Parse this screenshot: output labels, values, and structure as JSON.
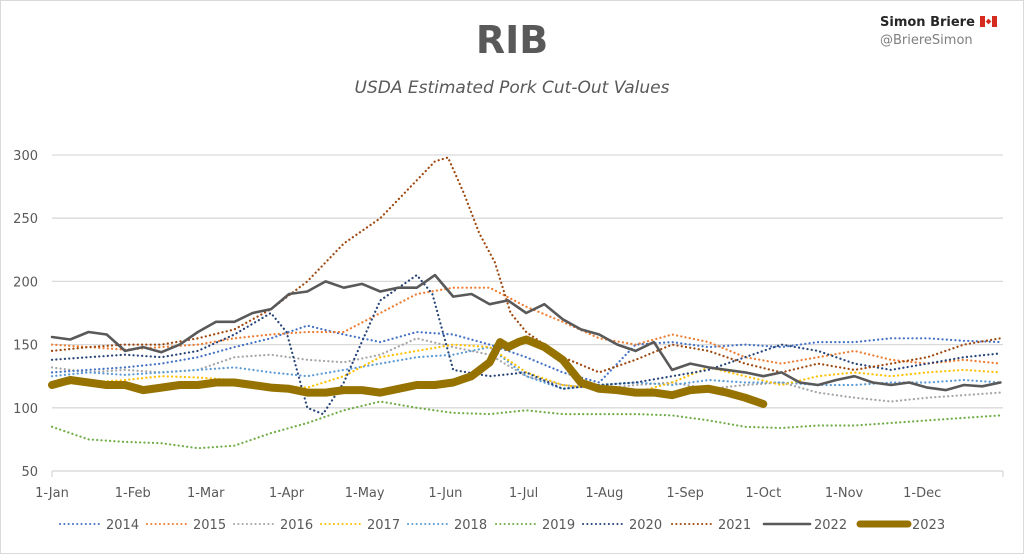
{
  "header": {
    "title": "RIB",
    "subtitle": "USDA Estimated Pork Cut-Out Values",
    "author": "Simon Briere",
    "author_flag_icon": "canada-flag-icon",
    "handle": "@BriereSimon"
  },
  "chart_data": {
    "type": "line",
    "title": "RIB",
    "subtitle": "USDA Estimated Pork Cut-Out Values",
    "xlabel": "",
    "ylabel": "",
    "ylim": [
      50,
      300
    ],
    "yticks": [
      50,
      100,
      150,
      200,
      250,
      300
    ],
    "xlim_day_of_year": [
      0,
      365
    ],
    "xticks": [
      {
        "label": "1-Jan",
        "day": 0
      },
      {
        "label": "1-Feb",
        "day": 31
      },
      {
        "label": "1-Mar",
        "day": 59
      },
      {
        "label": "1-Apr",
        "day": 90
      },
      {
        "label": "1-May",
        "day": 120
      },
      {
        "label": "1-Jun",
        "day": 151
      },
      {
        "label": "1-Jul",
        "day": 181
      },
      {
        "label": "1-Aug",
        "day": 212
      },
      {
        "label": "1-Sep",
        "day": 243
      },
      {
        "label": "1-Oct",
        "day": 273
      },
      {
        "label": "1-Nov",
        "day": 304
      },
      {
        "label": "1-Dec",
        "day": 334
      }
    ],
    "grid": true,
    "legend_position": "bottom",
    "series": [
      {
        "name": "2014",
        "color": "#4472c4",
        "style": "dotted",
        "x": [
          0,
          14,
          28,
          42,
          56,
          70,
          84,
          98,
          112,
          126,
          140,
          154,
          168,
          182,
          196,
          210,
          224,
          238,
          252,
          266,
          280,
          294,
          308,
          322,
          336,
          350,
          364
        ],
        "values": [
          128,
          130,
          132,
          135,
          140,
          148,
          155,
          165,
          158,
          152,
          160,
          158,
          150,
          140,
          128,
          120,
          150,
          152,
          148,
          150,
          148,
          152,
          152,
          155,
          155,
          153,
          152
        ]
      },
      {
        "name": "2015",
        "color": "#ed7d31",
        "style": "dotted",
        "x": [
          0,
          14,
          28,
          42,
          56,
          70,
          84,
          98,
          112,
          126,
          140,
          154,
          168,
          182,
          196,
          210,
          224,
          238,
          252,
          266,
          280,
          294,
          308,
          322,
          336,
          350,
          364
        ],
        "values": [
          150,
          148,
          146,
          148,
          150,
          155,
          158,
          160,
          160,
          175,
          190,
          195,
          195,
          180,
          168,
          155,
          150,
          158,
          152,
          140,
          135,
          140,
          145,
          138,
          135,
          138,
          135
        ]
      },
      {
        "name": "2016",
        "color": "#a5a5a5",
        "style": "dotted",
        "x": [
          0,
          14,
          28,
          42,
          56,
          70,
          84,
          98,
          112,
          126,
          140,
          154,
          168,
          182,
          196,
          210,
          224,
          238,
          252,
          266,
          280,
          294,
          308,
          322,
          336,
          350,
          364
        ],
        "values": [
          132,
          128,
          130,
          128,
          130,
          140,
          142,
          138,
          136,
          142,
          155,
          148,
          142,
          125,
          118,
          115,
          118,
          120,
          115,
          118,
          120,
          112,
          108,
          105,
          108,
          110,
          112
        ]
      },
      {
        "name": "2017",
        "color": "#ffc000",
        "style": "dotted",
        "x": [
          0,
          14,
          28,
          42,
          56,
          70,
          84,
          98,
          112,
          126,
          140,
          154,
          168,
          182,
          196,
          210,
          224,
          238,
          252,
          266,
          280,
          294,
          308,
          322,
          336,
          350,
          364
        ],
        "values": [
          118,
          120,
          122,
          125,
          124,
          122,
          118,
          116,
          125,
          140,
          145,
          150,
          148,
          128,
          118,
          115,
          112,
          120,
          132,
          125,
          118,
          125,
          128,
          125,
          128,
          130,
          128
        ]
      },
      {
        "name": "2018",
        "color": "#5b9bd5",
        "style": "dotted",
        "x": [
          0,
          14,
          28,
          42,
          56,
          70,
          84,
          98,
          112,
          126,
          140,
          154,
          168,
          182,
          196,
          210,
          224,
          238,
          252,
          266,
          280,
          294,
          308,
          322,
          336,
          350,
          364
        ],
        "values": [
          125,
          128,
          126,
          128,
          130,
          132,
          128,
          125,
          130,
          135,
          140,
          142,
          148,
          125,
          115,
          118,
          120,
          118,
          122,
          120,
          120,
          118,
          118,
          120,
          120,
          122,
          120
        ]
      },
      {
        "name": "2019",
        "color": "#70ad47",
        "style": "dotted",
        "x": [
          0,
          14,
          28,
          42,
          56,
          70,
          84,
          98,
          112,
          126,
          140,
          154,
          168,
          182,
          196,
          210,
          224,
          238,
          252,
          266,
          280,
          294,
          308,
          322,
          336,
          350,
          364
        ],
        "values": [
          85,
          75,
          73,
          72,
          68,
          70,
          80,
          88,
          98,
          105,
          100,
          96,
          95,
          98,
          95,
          95,
          95,
          94,
          90,
          85,
          84,
          86,
          86,
          88,
          90,
          92,
          94
        ]
      },
      {
        "name": "2020",
        "color": "#264478",
        "style": "dotted",
        "x": [
          0,
          14,
          28,
          42,
          56,
          70,
          84,
          90,
          98,
          104,
          112,
          126,
          140,
          146,
          154,
          168,
          182,
          196,
          210,
          224,
          238,
          252,
          266,
          280,
          294,
          308,
          322,
          336,
          350,
          364
        ],
        "values": [
          138,
          140,
          142,
          140,
          145,
          158,
          175,
          160,
          100,
          95,
          120,
          185,
          205,
          190,
          130,
          125,
          128,
          115,
          118,
          120,
          125,
          130,
          140,
          150,
          145,
          135,
          130,
          135,
          140,
          143
        ]
      },
      {
        "name": "2021",
        "color": "#9e480e",
        "style": "dotted",
        "x": [
          0,
          14,
          28,
          42,
          56,
          70,
          84,
          98,
          112,
          126,
          140,
          147,
          152,
          158,
          164,
          170,
          176,
          182,
          196,
          210,
          224,
          238,
          252,
          266,
          280,
          294,
          308,
          322,
          336,
          350,
          364
        ],
        "values": [
          145,
          148,
          150,
          150,
          155,
          162,
          178,
          200,
          230,
          250,
          280,
          295,
          298,
          270,
          238,
          215,
          175,
          160,
          140,
          128,
          138,
          150,
          145,
          135,
          128,
          135,
          130,
          135,
          140,
          150,
          155
        ]
      },
      {
        "name": "2022",
        "color": "#595959",
        "style": "solid",
        "x": [
          0,
          7,
          14,
          21,
          28,
          35,
          42,
          49,
          56,
          63,
          70,
          77,
          84,
          91,
          98,
          105,
          112,
          119,
          126,
          133,
          140,
          147,
          154,
          161,
          168,
          175,
          182,
          189,
          196,
          203,
          210,
          217,
          224,
          231,
          238,
          245,
          252,
          259,
          266,
          273,
          280,
          287,
          294,
          301,
          308,
          315,
          322,
          329,
          336,
          343,
          350,
          357,
          364
        ],
        "values": [
          156,
          154,
          160,
          158,
          145,
          148,
          144,
          150,
          160,
          168,
          168,
          175,
          178,
          190,
          192,
          200,
          195,
          198,
          192,
          195,
          195,
          205,
          188,
          190,
          182,
          185,
          175,
          182,
          170,
          162,
          158,
          150,
          145,
          152,
          130,
          135,
          132,
          130,
          128,
          125,
          128,
          120,
          118,
          122,
          125,
          120,
          118,
          120,
          116,
          114,
          118,
          117,
          120
        ]
      },
      {
        "name": "2023",
        "color": "#967300",
        "style": "solid-thick",
        "x": [
          0,
          7,
          14,
          21,
          28,
          35,
          42,
          49,
          56,
          63,
          70,
          77,
          84,
          91,
          98,
          105,
          112,
          119,
          126,
          133,
          140,
          147,
          154,
          161,
          168,
          172,
          175,
          179,
          182,
          189,
          196,
          203,
          210,
          217,
          224,
          231,
          238,
          245,
          252,
          259,
          266,
          273
        ],
        "values": [
          118,
          122,
          120,
          118,
          118,
          114,
          116,
          118,
          118,
          120,
          120,
          118,
          116,
          115,
          112,
          112,
          114,
          114,
          112,
          115,
          118,
          118,
          120,
          125,
          136,
          152,
          148,
          152,
          154,
          148,
          138,
          120,
          115,
          114,
          112,
          112,
          110,
          114,
          115,
          112,
          108,
          103
        ]
      }
    ]
  },
  "legend": {
    "items": [
      "2014",
      "2015",
      "2016",
      "2017",
      "2018",
      "2019",
      "2020",
      "2021",
      "2022",
      "2023"
    ]
  }
}
